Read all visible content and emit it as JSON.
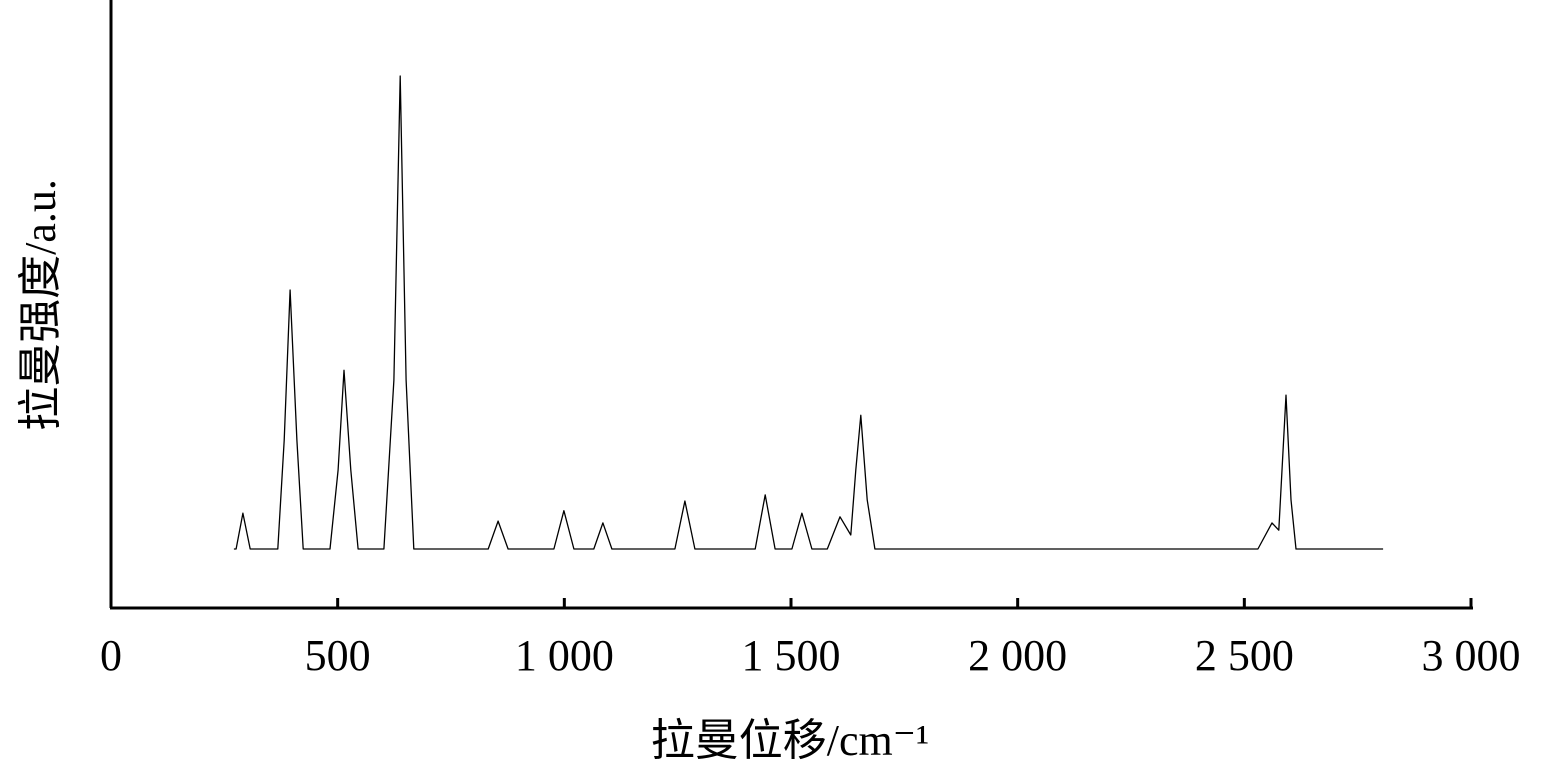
{
  "chart_data": {
    "type": "line",
    "xlabel": "拉曼位移/cm⁻¹",
    "ylabel": "拉曼强度/a.u.",
    "x": [
      271,
      276,
      291,
      307,
      368,
      382,
      395,
      410,
      424,
      483,
      501,
      514,
      529,
      545,
      602,
      624,
      638,
      651,
      668,
      832,
      854,
      876,
      977,
      999,
      1021,
      1065,
      1085,
      1105,
      1244,
      1266,
      1288,
      1421,
      1443,
      1465,
      1502,
      1524,
      1546,
      1580,
      1608,
      1632,
      1643,
      1654,
      1668,
      1685,
      2530,
      2561,
      2576,
      2592,
      2603,
      2614,
      2806
    ],
    "values": [
      9.7,
      9.7,
      15.6,
      9.7,
      9.7,
      27.6,
      52.3,
      27.6,
      9.7,
      9.7,
      22.7,
      39.1,
      22.7,
      9.7,
      9.7,
      37.5,
      87.5,
      37.5,
      9.7,
      9.7,
      14.3,
      9.7,
      9.7,
      16.0,
      9.7,
      9.7,
      14.0,
      9.7,
      9.7,
      17.6,
      9.7,
      9.7,
      18.6,
      9.7,
      9.7,
      15.6,
      9.7,
      9.7,
      15.0,
      12.0,
      22.7,
      31.7,
      17.8,
      9.7,
      9.7,
      14.0,
      12.8,
      35.0,
      17.8,
      9.7,
      9.7
    ],
    "color": "#000000",
    "xlim": [
      0,
      3000
    ],
    "xticks": [
      0,
      500,
      {
        "value": 1000,
        "label": "1 000"
      },
      {
        "value": 1500,
        "label": "1 500"
      },
      {
        "value": 2000,
        "label": "2 000"
      },
      {
        "value": 2500,
        "label": "2 500"
      },
      {
        "value": 3000,
        "label": "3 000"
      }
    ],
    "ylim": [
      0,
      100
    ],
    "grid": false
  }
}
